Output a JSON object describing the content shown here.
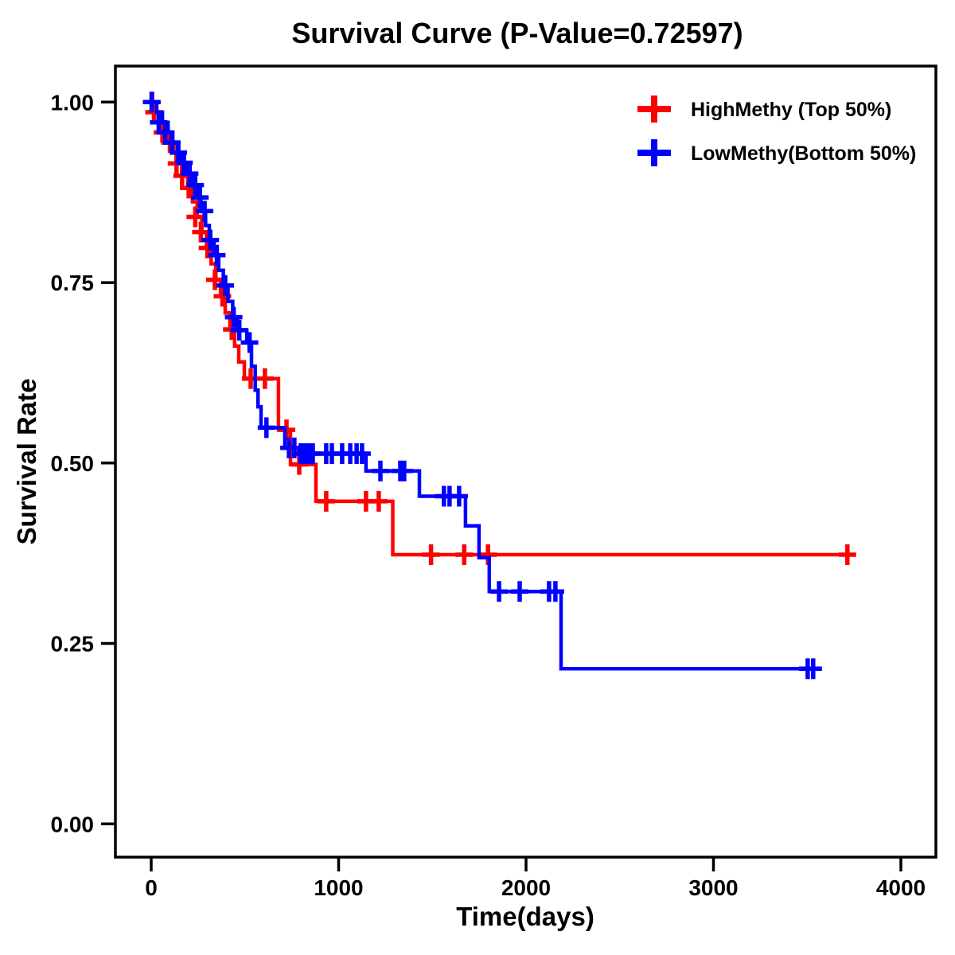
{
  "chart_data": {
    "type": "line",
    "subtype": "kaplan-meier-step-curve",
    "title": "Survival Curve (P-Value=0.72597)",
    "p_value": "0.72597",
    "xlabel": "Time(days)",
    "ylabel": "Survival Rate",
    "grid": false,
    "legend_position": "top-right-inside",
    "xlim": [
      -191,
      4187
    ],
    "ylim": [
      -0.046,
      1.05
    ],
    "xticks": [
      {
        "value": 0,
        "label": "0"
      },
      {
        "value": 1000,
        "label": "1000"
      },
      {
        "value": 2000,
        "label": "2000"
      },
      {
        "value": 3000,
        "label": "3000"
      },
      {
        "value": 4000,
        "label": "4000"
      }
    ],
    "yticks": [
      {
        "value": 0.0,
        "label": "0.00"
      },
      {
        "value": 0.25,
        "label": "0.25"
      },
      {
        "value": 0.5,
        "label": "0.50"
      },
      {
        "value": 0.75,
        "label": "0.75"
      },
      {
        "value": 1.0,
        "label": "1.00"
      }
    ],
    "series": [
      {
        "name": "HighMethy (Top 50%)",
        "color": "#ff0000",
        "end_time": 3740,
        "steps": [
          [
            0,
            1.0
          ],
          [
            20,
            0.986
          ],
          [
            45,
            0.972
          ],
          [
            70,
            0.958
          ],
          [
            95,
            0.944
          ],
          [
            120,
            0.93
          ],
          [
            145,
            0.915
          ],
          [
            170,
            0.898
          ],
          [
            195,
            0.881
          ],
          [
            220,
            0.862
          ],
          [
            245,
            0.841
          ],
          [
            270,
            0.82
          ],
          [
            295,
            0.798
          ],
          [
            320,
            0.776
          ],
          [
            345,
            0.754
          ],
          [
            370,
            0.731
          ],
          [
            395,
            0.708
          ],
          [
            420,
            0.685
          ],
          [
            445,
            0.662
          ],
          [
            467,
            0.64
          ],
          [
            497,
            0.617
          ],
          [
            679,
            0.546
          ],
          [
            743,
            0.498
          ],
          [
            879,
            0.447
          ],
          [
            1289,
            0.373
          ]
        ],
        "censors": [
          [
            5,
            1.0
          ],
          [
            15,
            0.986
          ],
          [
            60,
            0.958
          ],
          [
            100,
            0.944
          ],
          [
            135,
            0.915
          ],
          [
            165,
            0.898
          ],
          [
            200,
            0.881
          ],
          [
            235,
            0.841
          ],
          [
            265,
            0.82
          ],
          [
            300,
            0.798
          ],
          [
            340,
            0.754
          ],
          [
            380,
            0.731
          ],
          [
            430,
            0.685
          ],
          [
            531,
            0.617
          ],
          [
            607,
            0.617
          ],
          [
            722,
            0.546
          ],
          [
            790,
            0.498
          ],
          [
            934,
            0.447
          ],
          [
            1146,
            0.447
          ],
          [
            1214,
            0.447
          ],
          [
            1493,
            0.373
          ],
          [
            1670,
            0.373
          ],
          [
            1797,
            0.373
          ],
          [
            3715,
            0.373
          ]
        ]
      },
      {
        "name": "LowMethy(Bottom 50%)",
        "color": "#0000ff",
        "end_time": 3570,
        "steps": [
          [
            0,
            1.0
          ],
          [
            30,
            0.986
          ],
          [
            60,
            0.972
          ],
          [
            90,
            0.958
          ],
          [
            115,
            0.944
          ],
          [
            140,
            0.93
          ],
          [
            165,
            0.916
          ],
          [
            190,
            0.901
          ],
          [
            215,
            0.885
          ],
          [
            240,
            0.868
          ],
          [
            265,
            0.849
          ],
          [
            290,
            0.829
          ],
          [
            310,
            0.809
          ],
          [
            335,
            0.788
          ],
          [
            360,
            0.767
          ],
          [
            385,
            0.746
          ],
          [
            410,
            0.724
          ],
          [
            435,
            0.702
          ],
          [
            460,
            0.684
          ],
          [
            510,
            0.667
          ],
          [
            535,
            0.634
          ],
          [
            555,
            0.601
          ],
          [
            570,
            0.578
          ],
          [
            586,
            0.549
          ],
          [
            713,
            0.521
          ],
          [
            787,
            0.513
          ],
          [
            1146,
            0.489
          ],
          [
            1431,
            0.454
          ],
          [
            1677,
            0.413
          ],
          [
            1749,
            0.369
          ],
          [
            1804,
            0.322
          ],
          [
            2187,
            0.215
          ]
        ],
        "censors": [
          [
            2,
            1.0
          ],
          [
            40,
            0.972
          ],
          [
            75,
            0.958
          ],
          [
            110,
            0.944
          ],
          [
            145,
            0.93
          ],
          [
            175,
            0.916
          ],
          [
            205,
            0.901
          ],
          [
            235,
            0.885
          ],
          [
            260,
            0.868
          ],
          [
            285,
            0.849
          ],
          [
            315,
            0.809
          ],
          [
            350,
            0.788
          ],
          [
            395,
            0.746
          ],
          [
            440,
            0.702
          ],
          [
            470,
            0.684
          ],
          [
            525,
            0.667
          ],
          [
            615,
            0.549
          ],
          [
            735,
            0.521
          ],
          [
            764,
            0.521
          ],
          [
            798,
            0.513
          ],
          [
            820,
            0.513
          ],
          [
            841,
            0.513
          ],
          [
            862,
            0.513
          ],
          [
            934,
            0.513
          ],
          [
            964,
            0.513
          ],
          [
            1019,
            0.513
          ],
          [
            1062,
            0.513
          ],
          [
            1096,
            0.513
          ],
          [
            1125,
            0.513
          ],
          [
            1223,
            0.489
          ],
          [
            1329,
            0.489
          ],
          [
            1350,
            0.489
          ],
          [
            1562,
            0.454
          ],
          [
            1592,
            0.454
          ],
          [
            1643,
            0.454
          ],
          [
            1856,
            0.322
          ],
          [
            1966,
            0.322
          ],
          [
            2123,
            0.322
          ],
          [
            2157,
            0.322
          ],
          [
            3503,
            0.215
          ],
          [
            3532,
            0.215
          ]
        ]
      }
    ]
  }
}
